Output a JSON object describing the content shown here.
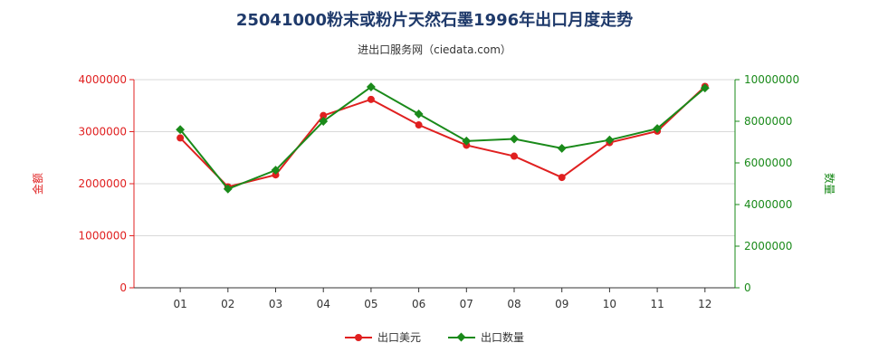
{
  "title": "25041000粉末或粉片天然石墨1996年出口月度走势",
  "subtitle": "进出口服务网（ciedata.com）",
  "colors": {
    "series1": "#e02020",
    "series2": "#1a8a1a",
    "axis": "#333333",
    "grid": "#d9d9d9"
  },
  "chart_data": {
    "type": "line",
    "categories": [
      "01",
      "02",
      "03",
      "04",
      "05",
      "06",
      "07",
      "08",
      "09",
      "10",
      "11",
      "12"
    ],
    "series": [
      {
        "name": "出口美元",
        "axis": "left",
        "color": "#e02020",
        "values": [
          2880000,
          1940000,
          2170000,
          3310000,
          3620000,
          3130000,
          2740000,
          2530000,
          2120000,
          2790000,
          3010000,
          3870000
        ]
      },
      {
        "name": "出口数量",
        "axis": "right",
        "color": "#1a8a1a",
        "values": [
          7600000,
          4750000,
          5650000,
          8000000,
          9650000,
          8350000,
          7050000,
          7150000,
          6700000,
          7100000,
          7650000,
          9600000
        ]
      }
    ],
    "ylabel_left": "金额",
    "ylabel_right": "数量",
    "ylim_left": [
      0,
      4000000
    ],
    "ylim_right": [
      0,
      10000000
    ],
    "yticks_left": [
      "0",
      "1000000",
      "2000000",
      "3000000",
      "4000000"
    ],
    "yticks_right": [
      "0",
      "2000000",
      "4000000",
      "6000000",
      "8000000",
      "10000000"
    ],
    "grid": true,
    "legend": "bottom"
  }
}
